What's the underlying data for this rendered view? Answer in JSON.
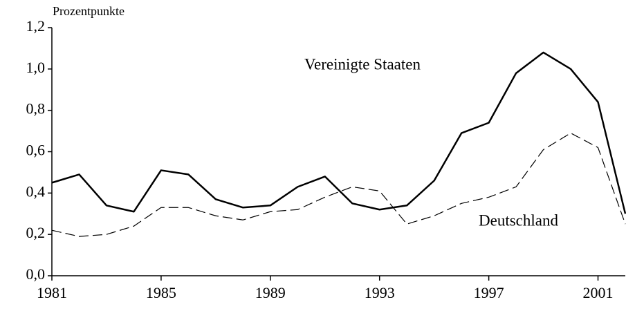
{
  "chart_data": {
    "type": "line",
    "y_label": "Prozentpunkte",
    "x": [
      1981,
      1982,
      1983,
      1984,
      1985,
      1986,
      1987,
      1988,
      1989,
      1990,
      1991,
      1992,
      1993,
      1994,
      1995,
      1996,
      1997,
      1998,
      1999,
      2000,
      2001,
      2002
    ],
    "series": [
      {
        "name": "Vereinigte Staaten",
        "color": "#000000",
        "dashed": false,
        "values": [
          0.45,
          0.49,
          0.34,
          0.31,
          0.51,
          0.49,
          0.37,
          0.33,
          0.34,
          0.43,
          0.48,
          0.35,
          0.32,
          0.34,
          0.46,
          0.69,
          0.74,
          0.98,
          1.08,
          1.0,
          0.84,
          0.3
        ]
      },
      {
        "name": "Deutschland",
        "color": "#000000",
        "dashed": true,
        "values": [
          0.22,
          0.19,
          0.2,
          0.24,
          0.33,
          0.33,
          0.29,
          0.27,
          0.31,
          0.32,
          0.38,
          0.43,
          0.41,
          0.25,
          0.29,
          0.35,
          0.38,
          0.43,
          0.61,
          0.69,
          0.62,
          0.25
        ]
      }
    ],
    "xlim": [
      1981,
      2002
    ],
    "xticks": [
      1981,
      1985,
      1989,
      1993,
      1997,
      2001
    ],
    "ylim": [
      0,
      1.2
    ],
    "yticks": [
      {
        "value": 0,
        "label": "0,0"
      },
      {
        "value": 0.2,
        "label": "0,2"
      },
      {
        "value": 0.4,
        "label": "0,4"
      },
      {
        "value": 0.6,
        "label": "0,6"
      },
      {
        "value": 0.8,
        "label": "0,8"
      },
      {
        "value": 1.0,
        "label": "1,0"
      },
      {
        "value": 1.2,
        "label": "1,2"
      }
    ]
  }
}
